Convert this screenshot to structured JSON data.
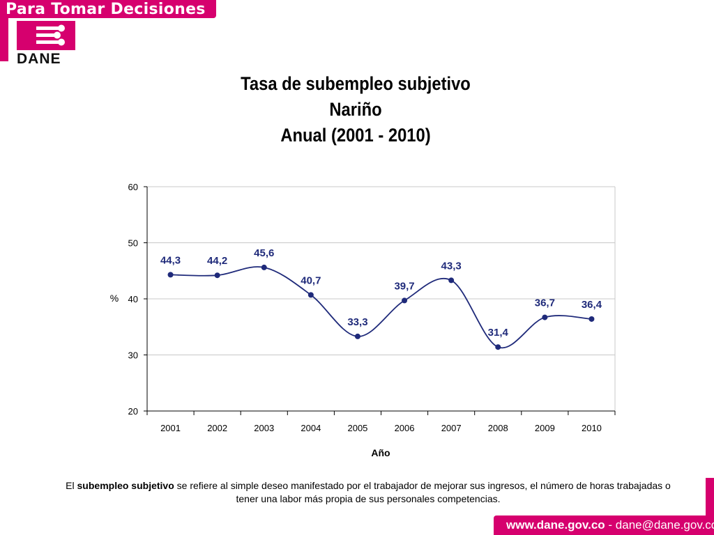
{
  "header": {
    "banner": "Para Tomar Decisiones",
    "logo": "DANE"
  },
  "colors": {
    "brand": "#d6006e",
    "series": "#1f2a7a"
  },
  "chart_data": {
    "type": "line",
    "title": [
      "Tasa de subempleo subjetivo",
      "Nariño",
      "Anual (2001 - 2010)"
    ],
    "xlabel": "Año",
    "ylabel": "%",
    "categories": [
      "2001",
      "2002",
      "2003",
      "2004",
      "2005",
      "2006",
      "2007",
      "2008",
      "2009",
      "2010"
    ],
    "values": [
      44.3,
      44.2,
      45.6,
      40.7,
      33.3,
      39.7,
      43.3,
      31.4,
      36.7,
      36.4
    ],
    "labels": [
      "44,3",
      "44,2",
      "45,6",
      "40,7",
      "33,3",
      "39,7",
      "43,3",
      "31,4",
      "36,7",
      "36,4"
    ],
    "yticks": [
      "20",
      "30",
      "40",
      "50",
      "60"
    ],
    "ylim": [
      20,
      60
    ],
    "grid": true,
    "smooth": true
  },
  "footnote": {
    "prefix": "El ",
    "term": "subempleo subjetivo",
    "rest": " se refiere al simple deseo  manifestado por el trabajador de mejorar sus ingresos, el número de horas trabajadas o tener una labor más propia de sus personales competencias."
  },
  "footer": {
    "site": "www.dane.gov.co",
    "email": " - dane@dane.gov.co"
  }
}
